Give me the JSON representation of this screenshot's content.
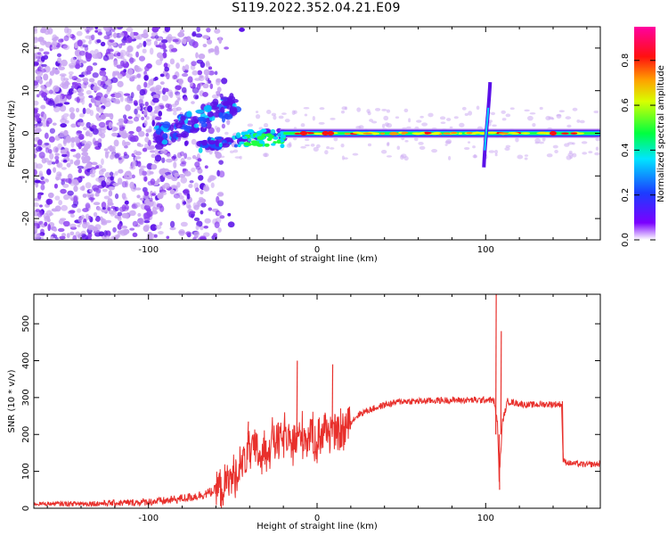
{
  "title": "S119.2022.352.04.21.E09",
  "colors": {
    "trace": "#e8302c",
    "scatter_low": "#c9a6f2",
    "scatter_mid": "#8a3cf0",
    "scatter_high": "#5a10e8"
  },
  "chart_data": [
    {
      "type": "heatmap",
      "xlabel": "Height of straight line (km)",
      "ylabel": "Frequency (Hz)",
      "xlim": [
        -168,
        168
      ],
      "ylim": [
        -25,
        25
      ],
      "x_ticks": [
        -100,
        0,
        100
      ],
      "x_tick_labels": [
        "-100",
        "0",
        "100"
      ],
      "y_ticks": [
        -20,
        -10,
        0,
        10,
        20
      ],
      "y_tick_labels": [
        "-20",
        "-10",
        "0",
        "10",
        "20"
      ],
      "colorbar": {
        "label": "Normalized spectral amplitude",
        "range": [
          0.0,
          0.95
        ],
        "ticks": [
          0.0,
          0.2,
          0.4,
          0.6,
          0.8
        ],
        "tick_labels": [
          "0.0",
          "0.2",
          "0.4",
          "0.6",
          "0.8"
        ],
        "colormap": "rainbow (violet → blue → cyan → green → yellow → orange → red → magenta)"
      },
      "features": {
        "main_band": {
          "x": [
            -22,
            168
          ],
          "frequency_hz": 0,
          "amplitude": "0.3–0.9"
        },
        "rising_arc": {
          "x": [
            -92,
            -50
          ],
          "frequency_hz": [
            -3,
            8
          ]
        },
        "vertical_streak": {
          "x": 100,
          "frequency_hz": [
            -8,
            12
          ]
        },
        "noise_region": {
          "x": [
            -168,
            -60
          ],
          "frequency_hz": [
            -25,
            25
          ],
          "amplitude": "0.05–0.25"
        }
      },
      "grid": false
    },
    {
      "type": "line",
      "xlabel": "Height of straight line (km)",
      "ylabel": "SNR (10 * v/v)",
      "xlim": [
        -168,
        168
      ],
      "ylim": [
        0,
        580
      ],
      "x_ticks": [
        -100,
        0,
        100
      ],
      "x_tick_labels": [
        "-100",
        "0",
        "100"
      ],
      "y_ticks": [
        0,
        100,
        200,
        300,
        400,
        500
      ],
      "y_tick_labels": [
        "0",
        "100",
        "200",
        "300",
        "400",
        "500"
      ],
      "x": [
        -168,
        -150,
        -130,
        -110,
        -90,
        -75,
        -65,
        -55,
        -48,
        -42,
        -38,
        -34,
        -30,
        -26,
        -22,
        -19,
        -16,
        -13,
        -10,
        -8,
        -6,
        -4,
        -2,
        0,
        2,
        4,
        6,
        8,
        10,
        12,
        15,
        20,
        25,
        30,
        40,
        50,
        60,
        70,
        80,
        90,
        98,
        102,
        105,
        107,
        108,
        110,
        113,
        118,
        125,
        135,
        145,
        146,
        150,
        160,
        168
      ],
      "y": [
        12,
        12,
        13,
        15,
        20,
        30,
        40,
        60,
        95,
        140,
        160,
        145,
        155,
        190,
        175,
        200,
        170,
        180,
        195,
        205,
        185,
        210,
        195,
        180,
        200,
        215,
        205,
        220,
        195,
        205,
        205,
        235,
        255,
        265,
        280,
        290,
        290,
        292,
        293,
        293,
        293,
        295,
        290,
        230,
        80,
        235,
        290,
        285,
        280,
        282,
        282,
        128,
        122,
        118,
        120
      ],
      "spikes": [
        {
          "x": -41,
          "y": 235
        },
        {
          "x": -12,
          "y": 400
        },
        {
          "x": 9,
          "y": 390
        },
        {
          "x": 106,
          "y": 580
        },
        {
          "x": 109,
          "y": 480
        },
        {
          "x": 108,
          "y": 50
        }
      ],
      "grid": false
    }
  ]
}
